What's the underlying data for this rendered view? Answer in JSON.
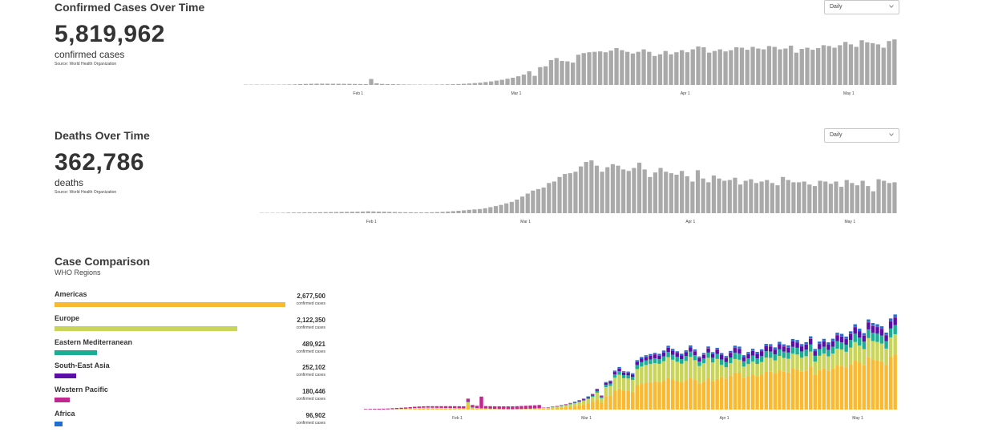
{
  "cases": {
    "title": "Confirmed Cases Over Time",
    "total": "5,819,962",
    "unit": "confirmed cases",
    "source": "Source: World Health Organization",
    "dropdown": "Daily"
  },
  "deaths": {
    "title": "Deaths Over Time",
    "total": "362,786",
    "unit": "deaths",
    "source": "Source: World Health Organization",
    "dropdown": "Daily"
  },
  "comparison": {
    "title": "Case Comparison",
    "subtitle": "WHO Regions",
    "regions": [
      {
        "name": "Americas",
        "value": "2,677,500",
        "unit": "confirmed cases",
        "color": "#f9b931",
        "share": 1.0
      },
      {
        "name": "Europe",
        "value": "2,122,350",
        "unit": "confirmed cases",
        "color": "#c8d45a",
        "share": 0.7927
      },
      {
        "name": "Eastern Mediterranean",
        "value": "489,921",
        "unit": "confirmed cases",
        "color": "#1bae94",
        "share": 0.183
      },
      {
        "name": "South-East Asia",
        "value": "252,102",
        "unit": "confirmed cases",
        "color": "#5b0fa8",
        "share": 0.0942
      },
      {
        "name": "Western Pacific",
        "value": "180,446",
        "unit": "confirmed cases",
        "color": "#c1288f",
        "share": 0.0674
      },
      {
        "name": "Africa",
        "value": "96,902",
        "unit": "confirmed cases",
        "color": "#1f6fd1",
        "share": 0.0362
      }
    ]
  },
  "chart_data": [
    {
      "type": "bar",
      "title": "Confirmed Cases Over Time",
      "x_ticks": [
        "Feb 1",
        "Mar 1",
        "Apr 1",
        "May 1"
      ],
      "bar_color": "#a9a9a9",
      "ylim": [
        0,
        120000
      ],
      "values": [
        10,
        20,
        40,
        80,
        150,
        300,
        600,
        900,
        1200,
        1500,
        2000,
        2500,
        2800,
        3000,
        3100,
        3000,
        2900,
        2800,
        2700,
        2600,
        2400,
        2200,
        2000,
        14500,
        4000,
        2500,
        2000,
        1800,
        1500,
        1200,
        1000,
        800,
        700,
        600,
        800,
        1000,
        1200,
        1500,
        1800,
        2200,
        2800,
        3500,
        4500,
        5500,
        7000,
        8500,
        10500,
        12500,
        15000,
        17500,
        21000,
        25000,
        33000,
        22000,
        43000,
        45000,
        60000,
        65000,
        58000,
        57000,
        54000,
        73000,
        77000,
        79000,
        80000,
        81000,
        79000,
        83000,
        89000,
        84000,
        80000,
        76000,
        80000,
        86000,
        80000,
        70000,
        74000,
        82000,
        74000,
        79000,
        84000,
        79000,
        86000,
        93000,
        91000,
        78000,
        82000,
        86000,
        81000,
        84000,
        91000,
        90000,
        85000,
        92000,
        88000,
        86000,
        94000,
        92000,
        86000,
        88000,
        95000,
        78000,
        87000,
        90000,
        85000,
        89000,
        96000,
        94000,
        90000,
        96000,
        104000,
        98000,
        92000,
        108000,
        103000,
        101000,
        98000,
        90000,
        106000,
        110000
      ]
    },
    {
      "type": "bar",
      "title": "Deaths Over Time",
      "x_ticks": [
        "Feb 1",
        "Mar 1",
        "Apr 1",
        "May 1"
      ],
      "bar_color": "#a9a9a9",
      "ylim": [
        0,
        8500
      ],
      "values": [
        5,
        10,
        20,
        40,
        60,
        80,
        90,
        100,
        110,
        120,
        120,
        130,
        140,
        150,
        160,
        170,
        180,
        190,
        200,
        220,
        250,
        230,
        210,
        200,
        180,
        160,
        140,
        130,
        120,
        110,
        100,
        110,
        130,
        150,
        180,
        220,
        270,
        320,
        380,
        450,
        500,
        550,
        650,
        800,
        950,
        1100,
        1300,
        1500,
        1800,
        2200,
        2600,
        3000,
        3200,
        3400,
        4000,
        4200,
        4800,
        5200,
        5300,
        5500,
        6200,
        6800,
        7000,
        6300,
        5500,
        6100,
        6500,
        6300,
        5800,
        5600,
        6000,
        6700,
        5800,
        4800,
        5400,
        6000,
        5500,
        5300,
        5100,
        5600,
        4900,
        4200,
        5700,
        4600,
        4100,
        5000,
        4600,
        4300,
        4400,
        4700,
        3800,
        4300,
        4500,
        4000,
        4200,
        4400,
        4000,
        3700,
        4800,
        4400,
        4100,
        4100,
        4200,
        3800,
        3600,
        4300,
        4200,
        3900,
        4200,
        3500,
        4400,
        4000,
        3700,
        4300,
        3600,
        2900,
        4500,
        4300,
        4000,
        4100
      ]
    },
    {
      "type": "bar",
      "stacked": true,
      "title": "Case Comparison",
      "subtitle": "WHO Regions",
      "x_ticks": [
        "Feb 1",
        "Mar 1",
        "Apr 1",
        "May 1"
      ],
      "ylim": [
        0,
        130000
      ],
      "days": 120,
      "series": [
        {
          "name": "Americas",
          "color": "#f9b931",
          "start_value": 0,
          "end_value": 60000
        },
        {
          "name": "Europe",
          "color": "#c8d45a",
          "start_value": 0,
          "end_value": 22000
        },
        {
          "name": "Eastern Mediterranean",
          "color": "#1bae94",
          "start_value": 0,
          "end_value": 10000
        },
        {
          "name": "South-East Asia",
          "color": "#5b0fa8",
          "start_value": 0,
          "end_value": 8000
        },
        {
          "name": "Western Pacific",
          "color": "#c1288f",
          "start_value": 3000,
          "end_value": 400
        },
        {
          "name": "Africa",
          "color": "#1f6fd1",
          "start_value": 0,
          "end_value": 3000
        }
      ]
    }
  ]
}
